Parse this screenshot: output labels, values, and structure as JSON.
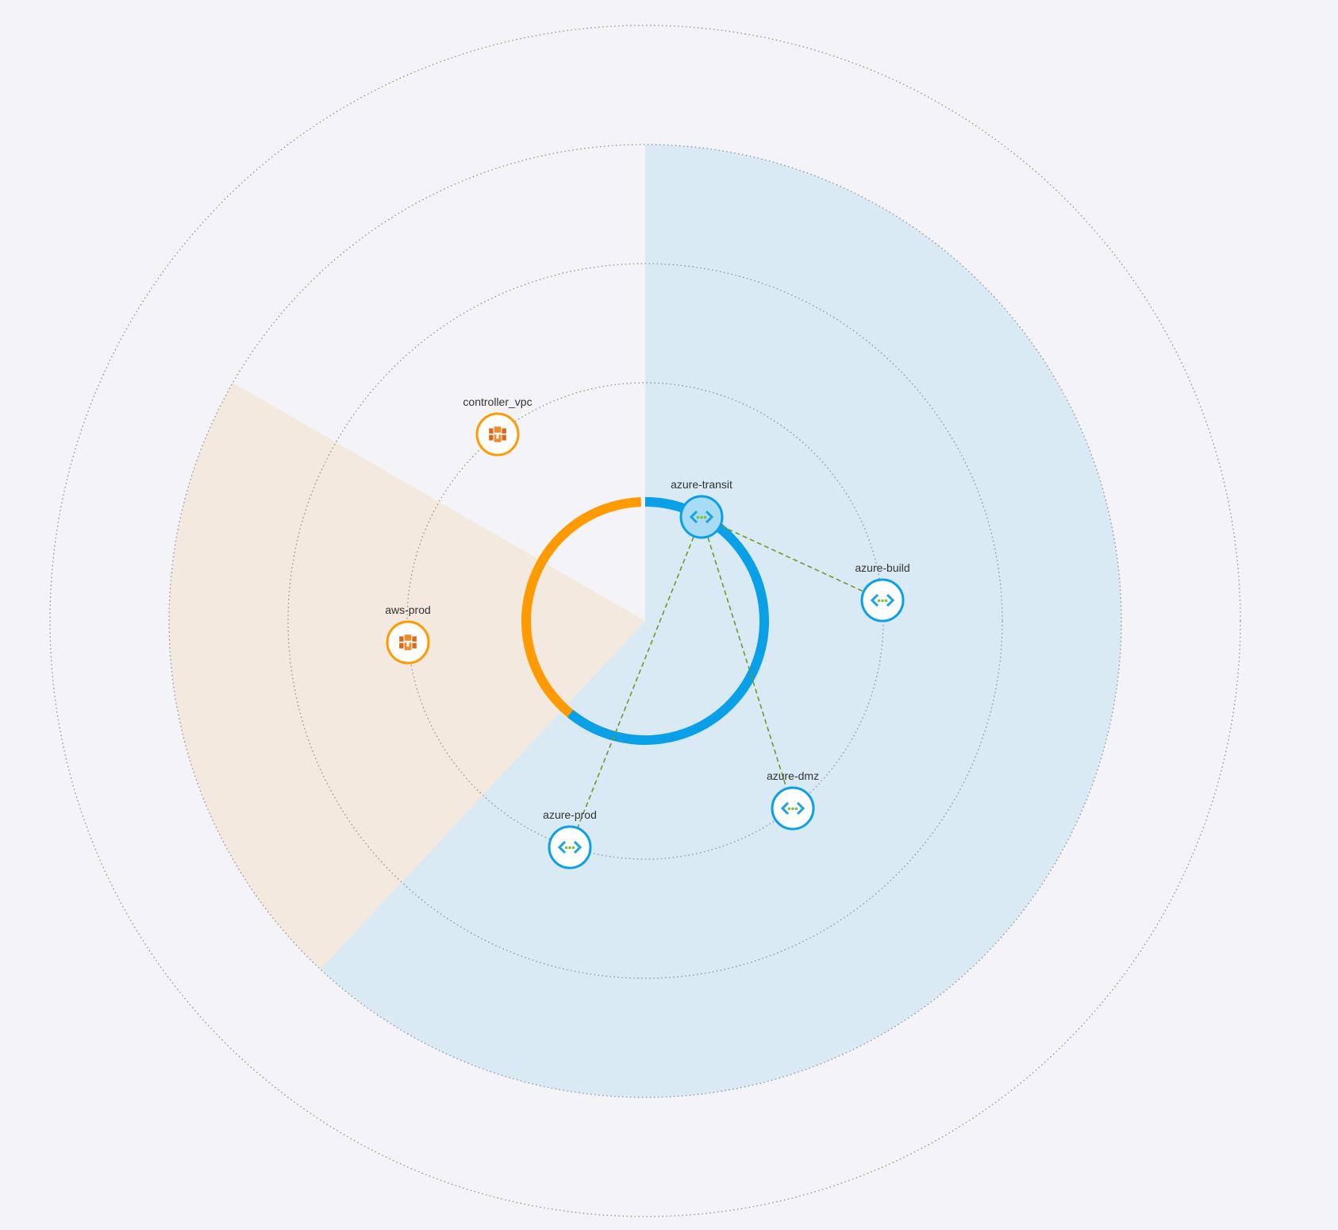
{
  "colors": {
    "background": "#f3f3f8",
    "aws_sector": "#f3e9df",
    "azure_sector": "#d9eaf5",
    "aws_accent": "#ff9a00",
    "azure_accent": "#0aa0e8",
    "azure_transit_fill": "#a8dcf4",
    "link": "#6e9a2a",
    "ring": "#8f8f9a"
  },
  "clouds": [
    {
      "name": "aws",
      "color_key": "aws_accent"
    },
    {
      "name": "azure",
      "color_key": "azure_accent"
    }
  ],
  "nodes": [
    {
      "id": "controller_vpc",
      "label": "controller_vpc",
      "cloud": "aws",
      "icon": "aws-vpc-icon"
    },
    {
      "id": "aws-prod",
      "label": "aws-prod",
      "cloud": "aws",
      "icon": "aws-vpc-icon"
    },
    {
      "id": "azure-transit",
      "label": "azure-transit",
      "cloud": "azure",
      "icon": "azure-vnet-icon",
      "transit": true
    },
    {
      "id": "azure-build",
      "label": "azure-build",
      "cloud": "azure",
      "icon": "azure-vnet-icon"
    },
    {
      "id": "azure-dmz",
      "label": "azure-dmz",
      "cloud": "azure",
      "icon": "azure-vnet-icon"
    },
    {
      "id": "azure-prod",
      "label": "azure-prod",
      "cloud": "azure",
      "icon": "azure-vnet-icon"
    }
  ],
  "links": [
    {
      "from": "azure-transit",
      "to": "azure-build"
    },
    {
      "from": "azure-transit",
      "to": "azure-dmz"
    },
    {
      "from": "azure-transit",
      "to": "azure-prod"
    }
  ]
}
